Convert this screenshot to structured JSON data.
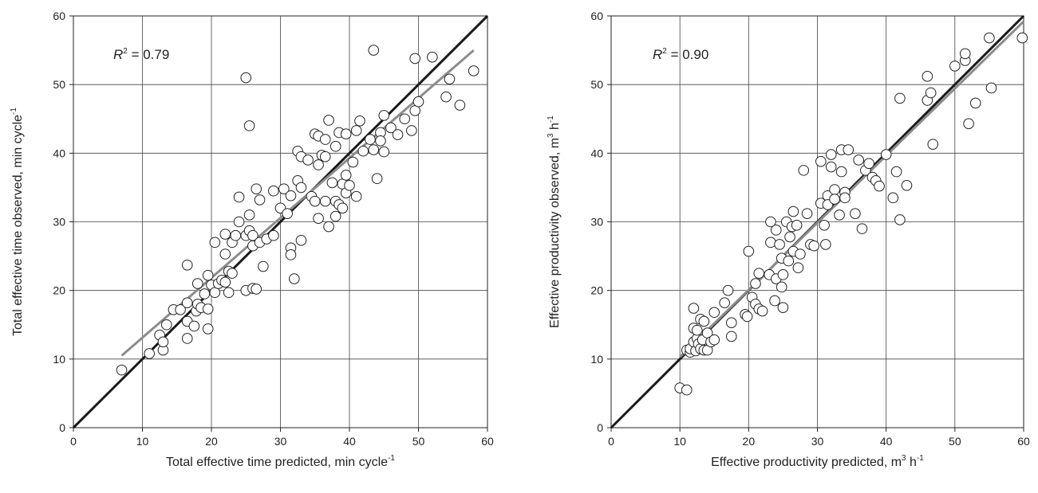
{
  "chart_data": [
    {
      "type": "scatter",
      "annotation": {
        "italic": "R",
        "sup": "2",
        "rest": " = 0.79"
      },
      "xlabel": {
        "text": "Total effective time predicted, min cycle",
        "sup": "-1"
      },
      "ylabel": {
        "text": "Total effective time observed, min cycle",
        "sup": "-1"
      },
      "xlim": [
        0,
        60
      ],
      "ylim": [
        0,
        60
      ],
      "xticks": [
        0,
        10,
        20,
        30,
        40,
        50,
        60
      ],
      "yticks": [
        0,
        10,
        20,
        30,
        40,
        50,
        60
      ],
      "grid": true,
      "lines": [
        {
          "kind": "1:1",
          "color": "#1a1a1a",
          "x": [
            0,
            60
          ],
          "y": [
            0,
            60
          ]
        },
        {
          "kind": "regression",
          "color": "#8c8c8c",
          "x": [
            7,
            58
          ],
          "y": [
            10.5,
            55
          ]
        }
      ],
      "points": [
        [
          7,
          8.4
        ],
        [
          11,
          10.8
        ],
        [
          12.5,
          13.5
        ],
        [
          13,
          11.3
        ],
        [
          13,
          12.5
        ],
        [
          13.5,
          15
        ],
        [
          14.5,
          17.2
        ],
        [
          15.5,
          17.2
        ],
        [
          16.5,
          18.2
        ],
        [
          16.5,
          13
        ],
        [
          16.5,
          15.5
        ],
        [
          16.5,
          23.7
        ],
        [
          17.5,
          14.8
        ],
        [
          17.8,
          17
        ],
        [
          18,
          18
        ],
        [
          18,
          21
        ],
        [
          18.5,
          17.5
        ],
        [
          19,
          19.5
        ],
        [
          19.5,
          22.2
        ],
        [
          19.5,
          17.3
        ],
        [
          19.5,
          14.4
        ],
        [
          20,
          20.8
        ],
        [
          20.5,
          27
        ],
        [
          20.5,
          19.7
        ],
        [
          21,
          21
        ],
        [
          21.5,
          21.5
        ],
        [
          22,
          25.3
        ],
        [
          22,
          28.2
        ],
        [
          22,
          21.2
        ],
        [
          22.5,
          19.7
        ],
        [
          22.5,
          22.8
        ],
        [
          23,
          22.5
        ],
        [
          23,
          27
        ],
        [
          23.5,
          28
        ],
        [
          24,
          30
        ],
        [
          24,
          33.6
        ],
        [
          25,
          51
        ],
        [
          25,
          20
        ],
        [
          25,
          28
        ],
        [
          25.5,
          44
        ],
        [
          25.5,
          28.7
        ],
        [
          25.5,
          31
        ],
        [
          26,
          26.5
        ],
        [
          26,
          20.3
        ],
        [
          26,
          28
        ],
        [
          26.5,
          20.2
        ],
        [
          26.5,
          34.8
        ],
        [
          27,
          33.2
        ],
        [
          27,
          27
        ],
        [
          27.5,
          23.5
        ],
        [
          28,
          27.5
        ],
        [
          29,
          28
        ],
        [
          29,
          34.5
        ],
        [
          30,
          32
        ],
        [
          30.5,
          34.8
        ],
        [
          31,
          31.2
        ],
        [
          31.5,
          33.8
        ],
        [
          31.5,
          26.2
        ],
        [
          31.5,
          25.2
        ],
        [
          32,
          21.7
        ],
        [
          32.5,
          40.3
        ],
        [
          32.5,
          36
        ],
        [
          33,
          39.5
        ],
        [
          33,
          35
        ],
        [
          33,
          27.3
        ],
        [
          34,
          39
        ],
        [
          34.5,
          33.7
        ],
        [
          35,
          42.8
        ],
        [
          35,
          33
        ],
        [
          35.5,
          42.5
        ],
        [
          35.5,
          38.3
        ],
        [
          35.5,
          30.5
        ],
        [
          36,
          39.7
        ],
        [
          36.5,
          42
        ],
        [
          36.5,
          39.5
        ],
        [
          36.5,
          33
        ],
        [
          37,
          29.3
        ],
        [
          37,
          44.8
        ],
        [
          37.5,
          35.7
        ],
        [
          38,
          33
        ],
        [
          38,
          41
        ],
        [
          38,
          30.8
        ],
        [
          38.5,
          43
        ],
        [
          38.5,
          32.5
        ],
        [
          39,
          35.5
        ],
        [
          39,
          32
        ],
        [
          39.5,
          42.8
        ],
        [
          39.5,
          36.8
        ],
        [
          39.5,
          34.2
        ],
        [
          40,
          35.3
        ],
        [
          40.5,
          38.7
        ],
        [
          41,
          43.3
        ],
        [
          41,
          33.7
        ],
        [
          41.5,
          44.7
        ],
        [
          42,
          40.3
        ],
        [
          43,
          42
        ],
        [
          43.5,
          55
        ],
        [
          43.5,
          40.5
        ],
        [
          44,
          36.3
        ],
        [
          44.5,
          43
        ],
        [
          44.5,
          41.8
        ],
        [
          45,
          45.5
        ],
        [
          45,
          40.2
        ],
        [
          46,
          43.7
        ],
        [
          47,
          42.7
        ],
        [
          48,
          45
        ],
        [
          49,
          43.3
        ],
        [
          49.5,
          46.2
        ],
        [
          49.5,
          53.8
        ],
        [
          50,
          47.5
        ],
        [
          52,
          54
        ],
        [
          54,
          48.2
        ],
        [
          54.5,
          50.8
        ],
        [
          56,
          47
        ],
        [
          58,
          52
        ]
      ],
      "point_color": "#222222"
    },
    {
      "type": "scatter",
      "annotation": {
        "italic": "R",
        "sup": "2",
        "rest": " = 0.90"
      },
      "xlabel": {
        "text": "Effective productivity predicted, m",
        "sup1": "3",
        "mid": " h",
        "sup2": "-1"
      },
      "ylabel": {
        "text": "Effective productivity observed, m",
        "sup1": "3",
        "mid": " h",
        "sup2": "-1"
      },
      "xlim": [
        0,
        60
      ],
      "ylim": [
        0,
        60
      ],
      "xticks": [
        0,
        10,
        20,
        30,
        40,
        50,
        60
      ],
      "yticks": [
        0,
        10,
        20,
        30,
        40,
        50,
        60
      ],
      "grid": true,
      "lines": [
        {
          "kind": "1:1",
          "color": "#1a1a1a",
          "x": [
            0,
            60
          ],
          "y": [
            0,
            60
          ]
        },
        {
          "kind": "regression",
          "color": "#8c8c8c",
          "x": [
            10,
            60
          ],
          "y": [
            10.3,
            59.2
          ]
        }
      ],
      "points": [
        [
          10,
          5.8
        ],
        [
          11,
          11.3
        ],
        [
          11,
          5.5
        ],
        [
          11.5,
          11
        ],
        [
          11.5,
          11.5
        ],
        [
          12,
          14.5
        ],
        [
          12,
          17.4
        ],
        [
          12,
          12.5
        ],
        [
          12.3,
          11.2
        ],
        [
          12.5,
          13
        ],
        [
          12.5,
          14.2
        ],
        [
          12.7,
          12.2
        ],
        [
          13,
          15.8
        ],
        [
          13,
          11.5
        ],
        [
          13.3,
          12.8
        ],
        [
          13.5,
          15.5
        ],
        [
          13.5,
          11.3
        ],
        [
          14,
          13.8
        ],
        [
          14,
          11.3
        ],
        [
          14.5,
          12.5
        ],
        [
          15,
          12.8
        ],
        [
          15,
          16.8
        ],
        [
          16.5,
          18.2
        ],
        [
          17,
          20
        ],
        [
          17.5,
          15.3
        ],
        [
          17.5,
          13.3
        ],
        [
          19.5,
          16.5
        ],
        [
          19.8,
          16.2
        ],
        [
          20,
          25.7
        ],
        [
          20.5,
          19
        ],
        [
          21,
          21
        ],
        [
          21,
          18
        ],
        [
          21.5,
          22.5
        ],
        [
          21.5,
          17.3
        ],
        [
          22,
          17
        ],
        [
          23,
          22.3
        ],
        [
          23.2,
          27
        ],
        [
          23.2,
          30
        ],
        [
          23.8,
          18.5
        ],
        [
          24,
          21.7
        ],
        [
          24,
          28.8
        ],
        [
          24.5,
          26.7
        ],
        [
          24.8,
          24.7
        ],
        [
          24.8,
          20.5
        ],
        [
          25,
          22.3
        ],
        [
          25,
          17.5
        ],
        [
          25.5,
          30
        ],
        [
          25.8,
          24.3
        ],
        [
          26,
          27.8
        ],
        [
          26.3,
          29.3
        ],
        [
          26.5,
          25.7
        ],
        [
          26.5,
          31.5
        ],
        [
          27,
          29.5
        ],
        [
          27.2,
          23.3
        ],
        [
          27.5,
          25.3
        ],
        [
          28,
          37.5
        ],
        [
          28.5,
          31.2
        ],
        [
          29,
          26.7
        ],
        [
          29.5,
          26.5
        ],
        [
          30.5,
          32.7
        ],
        [
          30.5,
          38.8
        ],
        [
          31,
          29.5
        ],
        [
          31.2,
          26.7
        ],
        [
          31.5,
          33.8
        ],
        [
          31.5,
          32.5
        ],
        [
          32,
          38
        ],
        [
          32,
          39.8
        ],
        [
          32.5,
          34.7
        ],
        [
          32.5,
          33.3
        ],
        [
          33.2,
          31
        ],
        [
          33.5,
          37.3
        ],
        [
          33.5,
          40.5
        ],
        [
          34,
          34.3
        ],
        [
          34,
          33.5
        ],
        [
          34.5,
          40.5
        ],
        [
          35.5,
          31.2
        ],
        [
          36,
          39
        ],
        [
          36.5,
          29
        ],
        [
          37,
          37.5
        ],
        [
          37.5,
          38.5
        ],
        [
          38,
          36.5
        ],
        [
          38.5,
          36
        ],
        [
          39,
          35.2
        ],
        [
          40,
          39.8
        ],
        [
          41,
          33.5
        ],
        [
          41.5,
          37.3
        ],
        [
          42,
          48
        ],
        [
          42,
          30.3
        ],
        [
          43,
          35.3
        ],
        [
          46,
          47.7
        ],
        [
          46,
          51.2
        ],
        [
          46.5,
          48.8
        ],
        [
          46.8,
          41.3
        ],
        [
          50,
          52.7
        ],
        [
          51.5,
          53.5
        ],
        [
          51.5,
          54.5
        ],
        [
          52,
          44.3
        ],
        [
          53,
          47.3
        ],
        [
          55,
          56.8
        ],
        [
          55.3,
          49.5
        ],
        [
          59.8,
          56.8
        ]
      ],
      "point_color": "#222222"
    }
  ]
}
